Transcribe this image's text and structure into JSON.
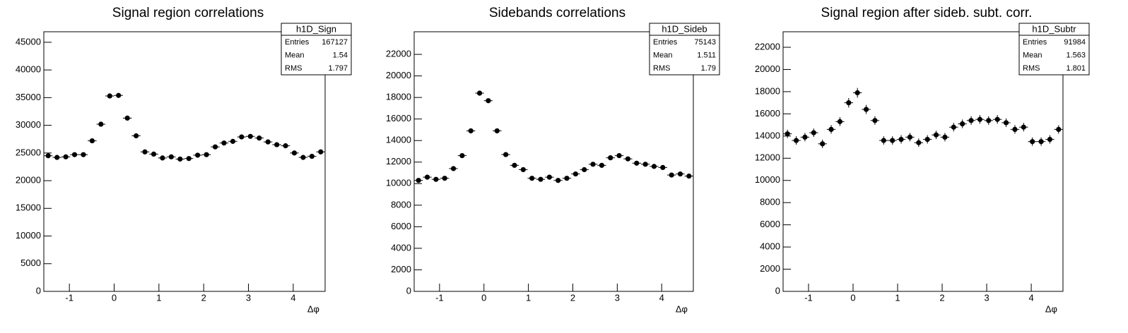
{
  "chart_data": [
    {
      "type": "errorbar",
      "title": "Signal region correlations",
      "x_label": "Δφ",
      "x": [
        -1.473,
        -1.276,
        -1.08,
        -0.884,
        -0.687,
        -0.491,
        -0.295,
        -0.098,
        0.098,
        0.295,
        0.491,
        0.687,
        0.884,
        1.08,
        1.276,
        1.473,
        1.669,
        1.865,
        2.062,
        2.258,
        2.454,
        2.651,
        2.847,
        3.043,
        3.24,
        3.436,
        3.633,
        3.829,
        4.025,
        4.222,
        4.418,
        4.614
      ],
      "values": [
        24500,
        24200,
        24300,
        24700,
        24700,
        27200,
        30200,
        35300,
        35400,
        31300,
        28100,
        25200,
        24800,
        24100,
        24300,
        23900,
        24000,
        24600,
        24700,
        26100,
        26800,
        27100,
        27900,
        28000,
        27700,
        27000,
        26500,
        26300,
        25000,
        24200,
        24400,
        25200
      ],
      "errors": [
        160,
        160,
        160,
        160,
        160,
        170,
        180,
        190,
        190,
        180,
        170,
        160,
        160,
        160,
        160,
        160,
        160,
        160,
        160,
        165,
        165,
        165,
        170,
        170,
        170,
        165,
        165,
        165,
        160,
        160,
        160,
        160
      ],
      "xlim": [
        -1.5708,
        4.7124
      ],
      "ylim": [
        0,
        46900
      ],
      "xticks": [
        -1,
        0,
        1,
        2,
        3,
        4
      ],
      "yticks": [
        0,
        5000,
        10000,
        15000,
        20000,
        25000,
        30000,
        35000,
        40000,
        45000
      ],
      "color": "#000000",
      "stats": {
        "name": "h1D_Sign",
        "rows": [
          [
            "Entries",
            "167127"
          ],
          [
            "Mean",
            "1.54"
          ],
          [
            "RMS",
            "1.797"
          ]
        ]
      }
    },
    {
      "type": "errorbar",
      "title": "Sidebands correlations",
      "x_label": "Δφ",
      "x": [
        -1.473,
        -1.276,
        -1.08,
        -0.884,
        -0.687,
        -0.491,
        -0.295,
        -0.098,
        0.098,
        0.295,
        0.491,
        0.687,
        0.884,
        1.08,
        1.276,
        1.473,
        1.669,
        1.865,
        2.062,
        2.258,
        2.454,
        2.651,
        2.847,
        3.043,
        3.24,
        3.436,
        3.633,
        3.829,
        4.025,
        4.222,
        4.418,
        4.614
      ],
      "values": [
        10300,
        10600,
        10400,
        10500,
        11400,
        12600,
        14900,
        18400,
        17700,
        14900,
        12700,
        11700,
        11300,
        10500,
        10400,
        10600,
        10300,
        10500,
        10900,
        11300,
        11800,
        11700,
        12400,
        12600,
        12300,
        11900,
        11800,
        11600,
        11500,
        10800,
        10900,
        10700
      ],
      "errors": [
        100,
        100,
        100,
        100,
        110,
        110,
        120,
        140,
        130,
        120,
        110,
        110,
        110,
        100,
        100,
        100,
        100,
        100,
        100,
        110,
        110,
        110,
        110,
        110,
        110,
        110,
        110,
        110,
        110,
        100,
        100,
        100
      ],
      "xlim": [
        -1.5708,
        4.7124
      ],
      "ylim": [
        0,
        24100
      ],
      "xticks": [
        -1,
        0,
        1,
        2,
        3,
        4
      ],
      "yticks": [
        0,
        2000,
        4000,
        6000,
        8000,
        10000,
        12000,
        14000,
        16000,
        18000,
        20000,
        22000
      ],
      "color": "#000000",
      "stats": {
        "name": "h1D_Sideb",
        "rows": [
          [
            "Entries",
            "75143"
          ],
          [
            "Mean",
            "1.511"
          ],
          [
            "RMS",
            "1.79"
          ]
        ]
      }
    },
    {
      "type": "errorbar",
      "title": "Signal region after sideb. subt. corr.",
      "x_label": "Δφ",
      "x": [
        -1.473,
        -1.276,
        -1.08,
        -0.884,
        -0.687,
        -0.491,
        -0.295,
        -0.098,
        0.098,
        0.295,
        0.491,
        0.687,
        0.884,
        1.08,
        1.276,
        1.473,
        1.669,
        1.865,
        2.062,
        2.258,
        2.454,
        2.651,
        2.847,
        3.043,
        3.24,
        3.436,
        3.633,
        3.829,
        4.025,
        4.222,
        4.418,
        4.614
      ],
      "values": [
        14200,
        13600,
        13900,
        14300,
        13300,
        14600,
        15300,
        17000,
        17900,
        16400,
        15400,
        13600,
        13600,
        13700,
        13900,
        13400,
        13700,
        14100,
        13900,
        14800,
        15100,
        15400,
        15500,
        15400,
        15500,
        15200,
        14600,
        14800,
        13500,
        13500,
        13700,
        14600
      ],
      "errors": [
        380,
        380,
        380,
        380,
        380,
        390,
        400,
        430,
        440,
        410,
        390,
        380,
        380,
        380,
        380,
        380,
        380,
        380,
        380,
        390,
        390,
        390,
        390,
        390,
        390,
        390,
        390,
        390,
        380,
        380,
        380,
        380
      ],
      "xlim": [
        -1.5708,
        4.7124
      ],
      "ylim": [
        0,
        23400
      ],
      "xticks": [
        -1,
        0,
        1,
        2,
        3,
        4
      ],
      "yticks": [
        0,
        2000,
        4000,
        6000,
        8000,
        10000,
        12000,
        14000,
        16000,
        18000,
        20000,
        22000
      ],
      "color": "#000000",
      "stats": {
        "name": "h1D_Subtr",
        "rows": [
          [
            "Entries",
            "91984"
          ],
          [
            "Mean",
            "1.563"
          ],
          [
            "RMS",
            "1.801"
          ]
        ]
      }
    }
  ]
}
